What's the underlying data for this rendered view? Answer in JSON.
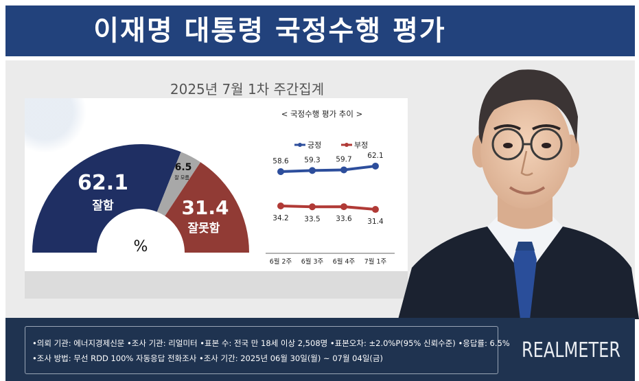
{
  "header": {
    "title": "이재명 대통령 국정수행 평가"
  },
  "subtitle": "2025년 7월 1차 주간집계",
  "chart_data": [
    {
      "type": "pie",
      "shape": "half-donut",
      "unit_label": "%",
      "slices": [
        {
          "label": "잘함",
          "value": 62.1,
          "color": "#1f2f63"
        },
        {
          "label": "잘 모름",
          "value": 6.5,
          "color": "#a8a8a8"
        },
        {
          "label": "잘못함",
          "value": 31.4,
          "color": "#913b35"
        }
      ]
    },
    {
      "type": "line",
      "title": "< 국정수행 평가 추이 >",
      "categories": [
        "6월 2주",
        "6월 3주",
        "6월 4주",
        "7월 1주"
      ],
      "series": [
        {
          "name": "긍정",
          "values": [
            58.6,
            59.3,
            59.7,
            62.1
          ],
          "color": "#2d4e9c"
        },
        {
          "name": "부정",
          "values": [
            34.2,
            33.5,
            33.6,
            31.4
          ],
          "color": "#b03a36"
        }
      ]
    }
  ],
  "footer": {
    "line1": "•의뢰 기관: 에너지경제신문 •조사 기관: 리얼미터 •표본 수: 전국 만 18세 이상 2,508명 •표본오차: ±2.0%P(95% 신뢰수준) •응답률: 6.5%",
    "line2": "•조사 방법: 무선 RDD 100% 자동응답 전화조사 •조사 기간: 2025년 06월 30일(월) ~ 07월 04일(금)",
    "logo": "REALMETER"
  },
  "colors": {
    "title_bar": "#22427c",
    "footer": "#1f3350"
  }
}
